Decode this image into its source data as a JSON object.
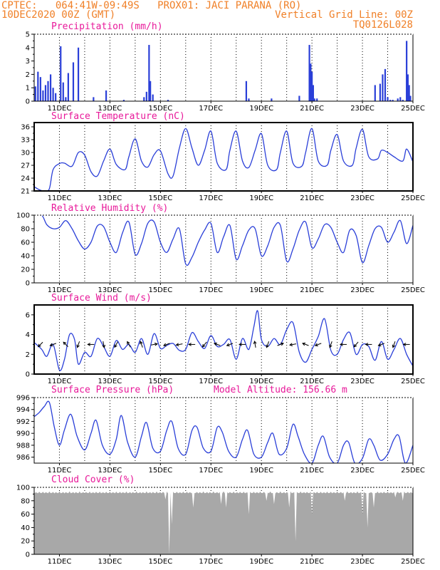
{
  "header": {
    "line1_left": "CPTEC:   064:41W-09:49S   PROX01: JACI PARANA (RO)",
    "line2_left": "10DEC2020 00Z (GMT)",
    "line2_right": "Vertical Grid Line: 00Z",
    "line3_right": "TQ0126L028"
  },
  "colors": {
    "header": "#f08028",
    "title": "#e8199a",
    "series": "#2a3fd8",
    "cloud": "#a8a8a8"
  },
  "x_axis": {
    "start": "10DEC2020 00Z",
    "end": "25DEC2020 00Z",
    "tick_labels": [
      "11DEC",
      "13DEC",
      "15DEC",
      "17DEC",
      "19DEC",
      "21DEC",
      "23DEC",
      "25DEC"
    ],
    "tick_days": [
      11,
      13,
      15,
      17,
      19,
      21,
      23,
      25
    ],
    "grid": "daily dotted vertical lines at 00Z"
  },
  "chart_data": [
    {
      "id": "precip",
      "type": "bar",
      "title": "Precipitation (mm/h)",
      "ylim": [
        0,
        5
      ],
      "yticks": [
        "0",
        "1",
        "2",
        "3",
        "4",
        "5"
      ],
      "x_day": [
        10.05,
        10.15,
        10.25,
        10.35,
        10.45,
        10.55,
        10.65,
        10.75,
        10.85,
        11.05,
        11.15,
        11.25,
        11.35,
        11.55,
        11.75,
        12.35,
        12.85,
        13.55,
        14.35,
        14.45,
        14.55,
        14.6,
        14.7,
        15.3,
        18.4,
        18.5,
        19.4,
        20.5,
        20.9,
        20.95,
        21.0,
        21.05,
        21.1,
        21.2,
        23.5,
        23.7,
        23.8,
        23.9,
        24.0,
        24.1,
        24.2,
        24.4,
        24.5,
        24.6,
        24.75,
        24.8,
        24.85,
        24.9
      ],
      "values": [
        1.1,
        2.2,
        1.8,
        0.8,
        1.2,
        1.5,
        2.0,
        1.0,
        0.6,
        4.1,
        1.4,
        0.3,
        2.1,
        2.9,
        4.0,
        0.3,
        0.8,
        0.1,
        0.3,
        0.7,
        4.2,
        1.5,
        0.5,
        0.1,
        1.5,
        0.2,
        0.2,
        0.4,
        4.2,
        2.8,
        2.2,
        1.2,
        0.2,
        0.2,
        1.2,
        1.3,
        2.0,
        2.4,
        0.3,
        0.1,
        0.1,
        0.2,
        0.3,
        0.1,
        4.5,
        2.0,
        1.2,
        0.4
      ]
    },
    {
      "id": "temp",
      "type": "line",
      "title": "Surface Temperature (nC)",
      "ylim": [
        21,
        37
      ],
      "yticks": [
        "21",
        "24",
        "27",
        "30",
        "33",
        "36"
      ],
      "x_day": [
        10.0,
        10.2,
        10.4,
        10.6,
        10.75,
        11.0,
        11.2,
        11.5,
        11.75,
        12.0,
        12.25,
        12.5,
        12.75,
        13.0,
        13.25,
        13.6,
        13.75,
        14.0,
        14.25,
        14.5,
        14.75,
        15.0,
        15.3,
        15.5,
        15.75,
        16.0,
        16.25,
        16.5,
        16.75,
        17.0,
        17.25,
        17.6,
        17.75,
        18.0,
        18.25,
        18.5,
        18.75,
        19.0,
        19.25,
        19.6,
        19.75,
        20.0,
        20.25,
        20.6,
        20.75,
        21.0,
        21.25,
        21.6,
        21.75,
        22.0,
        22.25,
        22.6,
        22.75,
        23.0,
        23.25,
        23.6,
        23.75,
        24.0,
        24.25,
        24.6,
        24.75,
        25.0
      ],
      "values": [
        22.0,
        21.3,
        21.0,
        21.5,
        26.0,
        27.4,
        27.5,
        26.8,
        30.0,
        29.4,
        25.5,
        24.5,
        28.0,
        30.8,
        27.2,
        26.0,
        29.0,
        33.2,
        28.0,
        26.6,
        29.5,
        30.4,
        25.0,
        24.5,
        31.0,
        35.6,
        31.0,
        27.0,
        30.5,
        35.0,
        27.5,
        26.0,
        30.5,
        35.0,
        28.0,
        26.5,
        30.5,
        34.4,
        27.0,
        26.0,
        30.0,
        35.0,
        27.5,
        26.8,
        30.0,
        35.6,
        28.0,
        27.0,
        30.5,
        34.2,
        28.0,
        27.0,
        31.0,
        35.4,
        29.0,
        28.5,
        30.5,
        30.0,
        29.0,
        28.0,
        30.8,
        27.8
      ]
    },
    {
      "id": "rh",
      "type": "line",
      "title": "Relative Humidity (%)",
      "ylim": [
        0,
        100
      ],
      "yticks": [
        "0",
        "20",
        "40",
        "60",
        "80",
        "100"
      ],
      "x_day": [
        10.0,
        10.3,
        10.5,
        10.75,
        11.0,
        11.25,
        11.5,
        11.75,
        12.0,
        12.25,
        12.5,
        12.75,
        13.0,
        13.25,
        13.5,
        13.75,
        14.0,
        14.25,
        14.5,
        14.75,
        15.0,
        15.25,
        15.5,
        15.75,
        16.0,
        16.25,
        16.5,
        16.75,
        17.0,
        17.25,
        17.5,
        17.75,
        18.0,
        18.25,
        18.5,
        18.75,
        19.0,
        19.25,
        19.5,
        19.75,
        20.0,
        20.25,
        20.5,
        20.75,
        21.0,
        21.25,
        21.5,
        21.75,
        22.0,
        22.25,
        22.5,
        22.75,
        23.0,
        23.25,
        23.5,
        23.75,
        24.0,
        24.25,
        24.5,
        24.75,
        25.0
      ],
      "values": [
        100,
        100,
        86,
        80,
        82,
        92,
        80,
        62,
        50,
        60,
        84,
        83,
        60,
        45,
        74,
        90,
        42,
        58,
        88,
        90,
        60,
        45,
        65,
        80,
        28,
        38,
        60,
        78,
        88,
        45,
        68,
        85,
        35,
        55,
        78,
        80,
        40,
        55,
        82,
        85,
        32,
        50,
        78,
        90,
        52,
        65,
        86,
        82,
        60,
        45,
        78,
        70,
        30,
        55,
        80,
        82,
        60,
        75,
        92,
        58,
        85
      ]
    },
    {
      "id": "wind",
      "type": "line",
      "title": "Surface Wind (m/s)",
      "ylim": [
        0,
        7
      ],
      "yticks": [
        "0",
        "2",
        "4",
        "6"
      ],
      "x_day": [
        10.0,
        10.3,
        10.5,
        10.75,
        11.0,
        11.2,
        11.4,
        11.6,
        11.75,
        12.0,
        12.25,
        12.5,
        12.75,
        13.0,
        13.25,
        13.5,
        13.75,
        14.0,
        14.25,
        14.5,
        14.75,
        15.0,
        15.25,
        15.5,
        15.75,
        16.0,
        16.25,
        16.5,
        16.75,
        17.0,
        17.25,
        17.5,
        17.75,
        18.0,
        18.25,
        18.5,
        18.7,
        18.85,
        19.0,
        19.25,
        19.5,
        19.75,
        20.0,
        20.25,
        20.5,
        20.75,
        21.0,
        21.25,
        21.5,
        21.75,
        22.0,
        22.25,
        22.5,
        22.75,
        23.0,
        23.25,
        23.5,
        23.75,
        24.0,
        24.25,
        24.5,
        24.75,
        25.0
      ],
      "values": [
        3.2,
        2.5,
        1.8,
        3.0,
        0.4,
        1.5,
        4.0,
        3.5,
        1.0,
        2.2,
        1.8,
        3.6,
        2.8,
        1.8,
        3.4,
        2.5,
        3.0,
        2.2,
        3.6,
        2.0,
        4.1,
        2.6,
        2.9,
        3.1,
        2.4,
        2.5,
        4.2,
        3.3,
        2.6,
        3.9,
        2.8,
        3.0,
        3.5,
        1.5,
        3.6,
        2.5,
        4.8,
        6.4,
        3.5,
        2.8,
        3.6,
        3.0,
        4.5,
        5.2,
        2.2,
        1.2,
        2.5,
        3.8,
        5.6,
        2.4,
        2.0,
        3.5,
        4.2,
        2.0,
        3.0,
        2.8,
        1.4,
        3.3,
        1.5,
        2.5,
        3.6,
        2.0,
        0.8
      ],
      "arrow_days": [
        10.25,
        10.75,
        11.25,
        11.75,
        12.25,
        12.75,
        13.25,
        13.75,
        14.25,
        14.75,
        15.25,
        15.75,
        16.25,
        16.75,
        17.25,
        17.75,
        18.25,
        18.75,
        19.25,
        19.75,
        20.25,
        20.75,
        21.25,
        21.75,
        22.25,
        22.75,
        23.25,
        23.75,
        24.25,
        24.75
      ],
      "arrow_angles_deg": [
        225,
        200,
        135,
        250,
        180,
        280,
        240,
        120,
        110,
        10,
        200,
        190,
        180,
        230,
        160,
        200,
        180,
        100,
        250,
        20,
        190,
        160,
        200,
        250,
        180,
        230,
        180,
        200,
        250,
        180
      ]
    },
    {
      "id": "press",
      "type": "line",
      "title": "Surface Pressure (hPa)",
      "annotation": "Model Altitude: 156.66 m",
      "ylim": [
        985,
        996
      ],
      "yticks": [
        "986",
        "988",
        "990",
        "992",
        "994",
        "996"
      ],
      "x_day": [
        10.0,
        10.2,
        10.4,
        10.6,
        10.8,
        11.0,
        11.2,
        11.45,
        11.7,
        12.0,
        12.25,
        12.45,
        12.7,
        13.0,
        13.25,
        13.45,
        13.7,
        14.0,
        14.25,
        14.45,
        14.7,
        15.0,
        15.25,
        15.45,
        15.7,
        16.0,
        16.25,
        16.45,
        16.7,
        17.0,
        17.25,
        17.45,
        17.7,
        18.0,
        18.25,
        18.45,
        18.7,
        19.0,
        19.25,
        19.45,
        19.7,
        20.0,
        20.25,
        20.45,
        20.7,
        21.0,
        21.25,
        21.45,
        21.7,
        22.0,
        22.25,
        22.45,
        22.7,
        23.0,
        23.25,
        23.45,
        23.7,
        24.0,
        24.25,
        24.45,
        24.7,
        25.0
      ],
      "values": [
        992.8,
        993.5,
        994.5,
        995.2,
        991.0,
        988.0,
        990.6,
        993.2,
        989.5,
        987.2,
        990.0,
        992.2,
        988.0,
        986.5,
        989.0,
        993.0,
        988.5,
        986.0,
        989.5,
        991.8,
        987.5,
        987.0,
        990.5,
        992.0,
        987.5,
        986.5,
        990.5,
        991.0,
        987.5,
        987.0,
        991.0,
        990.2,
        987.0,
        986.0,
        989.0,
        990.5,
        986.5,
        986.0,
        988.5,
        990.0,
        986.5,
        987.5,
        991.5,
        989.5,
        986.5,
        985.0,
        988.0,
        989.5,
        986.0,
        985.0,
        988.0,
        988.5,
        985.0,
        985.8,
        989.0,
        988.0,
        985.5,
        986.5,
        989.0,
        989.5,
        985.0,
        988.0
      ]
    },
    {
      "id": "cloud",
      "type": "bar",
      "title": "Cloud Cover (%)",
      "ylim": [
        0,
        100
      ],
      "yticks": [
        "0",
        "20",
        "40",
        "60",
        "80",
        "100"
      ],
      "baseline_percent": 94,
      "dips_x_day": [
        15.2,
        15.35,
        15.45,
        16.3,
        17.4,
        17.6,
        18.5,
        19.2,
        19.5,
        20.1,
        20.35,
        21.0,
        22.3,
        23.0,
        23.2,
        23.45,
        24.3,
        24.6
      ],
      "dips_values": [
        82,
        0,
        45,
        70,
        75,
        70,
        60,
        80,
        75,
        70,
        20,
        60,
        80,
        60,
        40,
        70,
        85,
        80
      ]
    }
  ]
}
